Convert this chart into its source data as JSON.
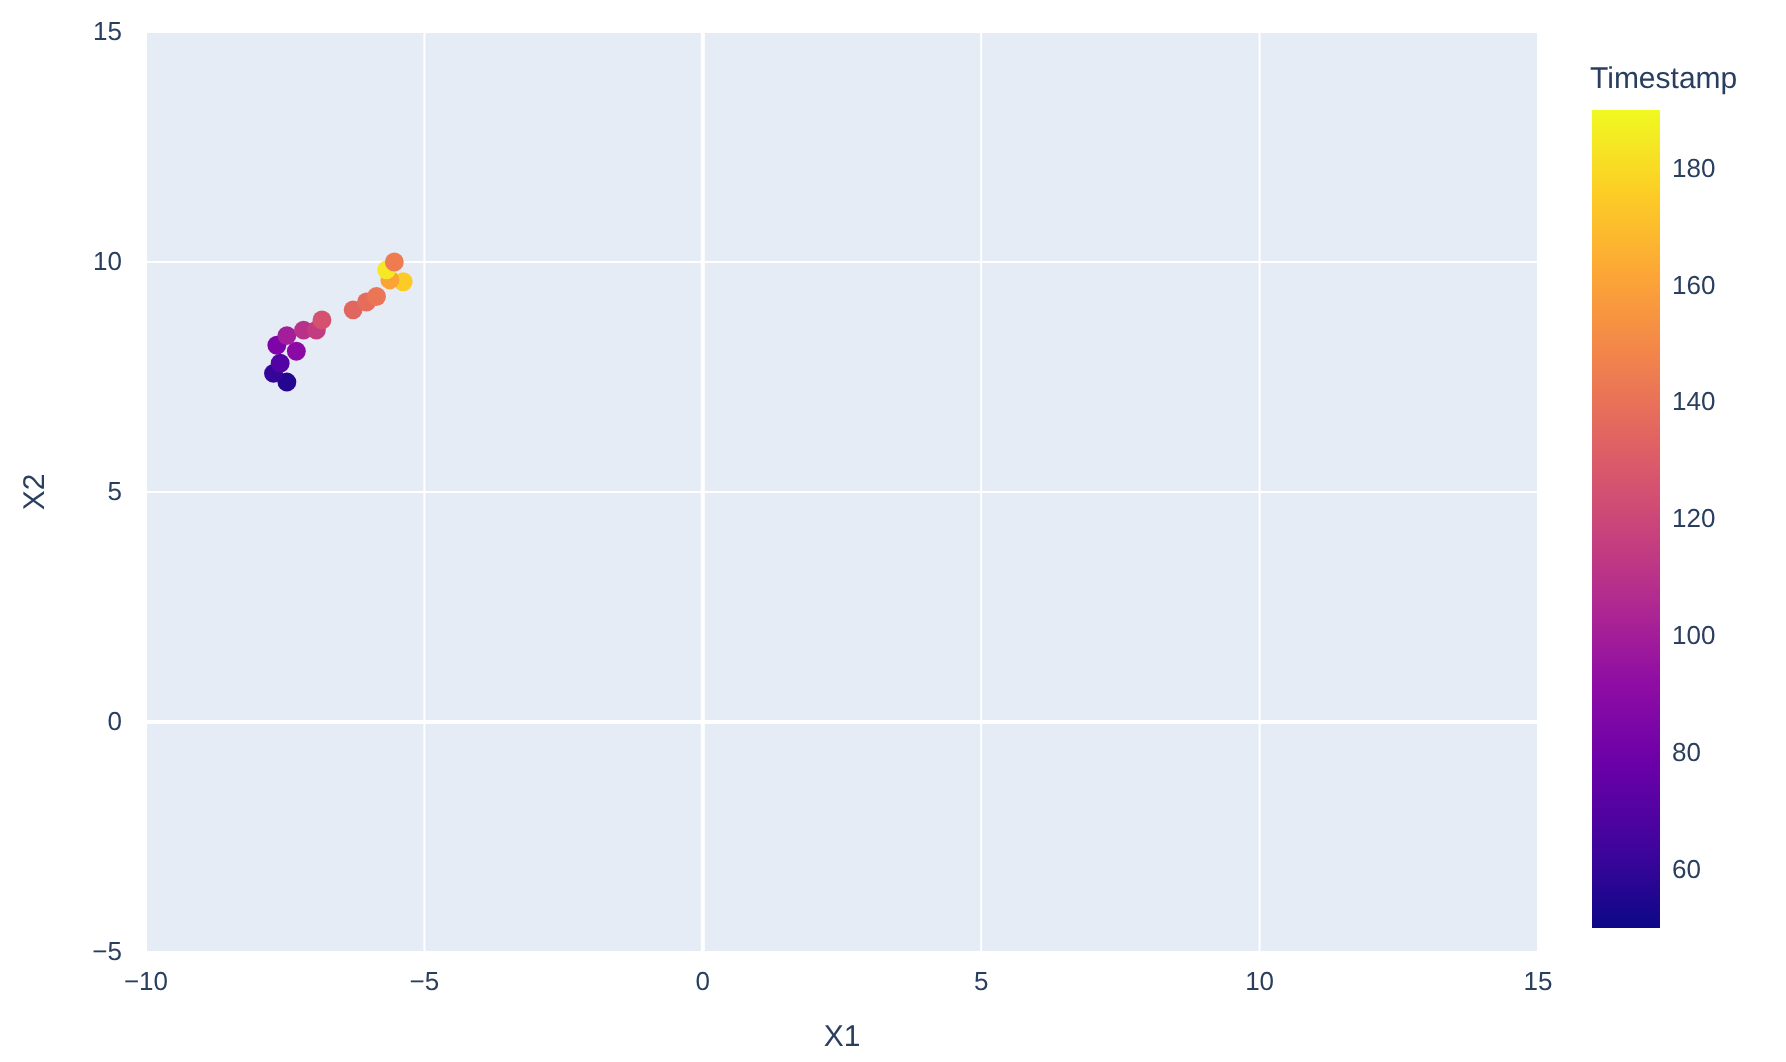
{
  "chart_data": {
    "type": "scatter",
    "xlabel": "X1",
    "ylabel": "X2",
    "clabel": "Timestamp",
    "x": [
      -7.47,
      -7.71,
      -7.59,
      -7.65,
      -7.3,
      -7.47,
      -7.17,
      -6.94,
      -6.84,
      -6.28,
      -6.04,
      -5.86,
      -5.38,
      -5.62,
      -5.68,
      -5.54
    ],
    "values": [
      7.39,
      7.58,
      7.8,
      8.19,
      8.06,
      8.4,
      8.52,
      8.52,
      8.74,
      8.96,
      9.13,
      9.25,
      9.57,
      9.61,
      9.83,
      10.0
    ],
    "cvalues": [
      55,
      60,
      70,
      85,
      90,
      100,
      110,
      115,
      125,
      135,
      138,
      142,
      175,
      160,
      185,
      145
    ],
    "xlim": [
      -10,
      15
    ],
    "xticks": [
      {
        "value": -10,
        "label": "−10"
      },
      {
        "value": -5,
        "label": "−5"
      },
      0,
      5,
      10,
      15
    ],
    "ylim": [
      -5,
      15
    ],
    "yticks": [
      {
        "value": -5,
        "label": "−5"
      },
      0,
      5,
      10,
      15
    ],
    "clim": [
      50,
      190
    ],
    "cticks": [
      60,
      80,
      100,
      120,
      140,
      160,
      180
    ],
    "grid": true,
    "marker": "circle"
  }
}
